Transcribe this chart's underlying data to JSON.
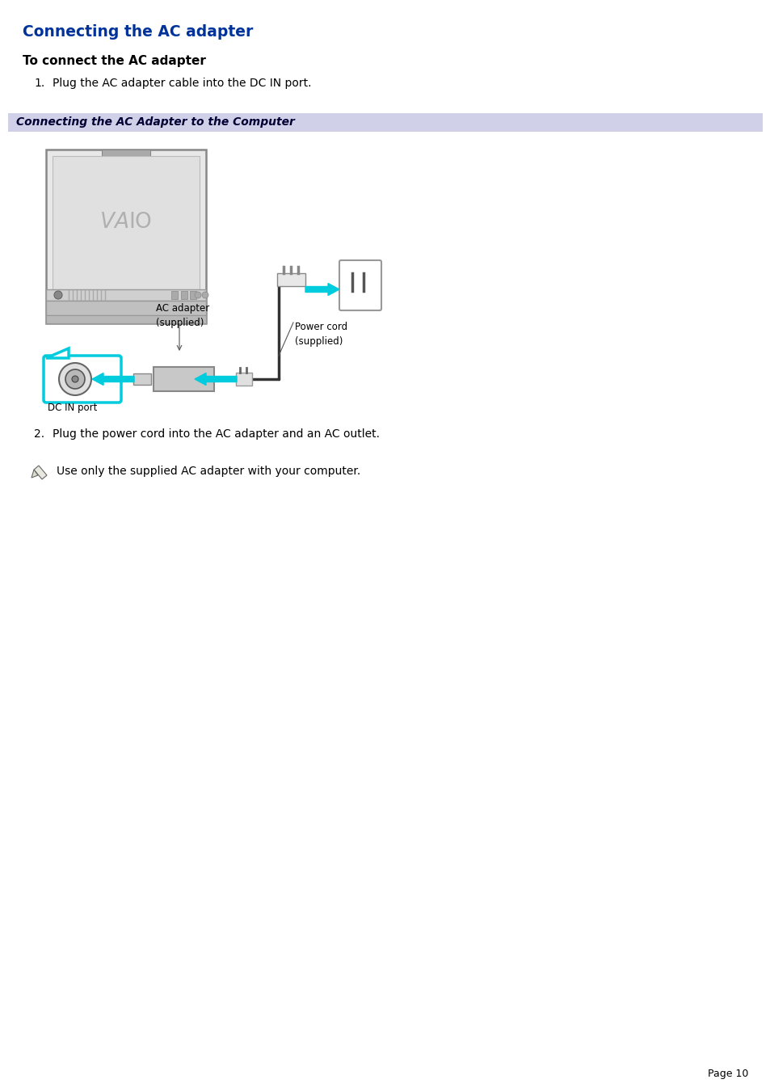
{
  "title": "Connecting the AC adapter",
  "title_color": "#003399",
  "subtitle": "To connect the AC adapter",
  "step1": "Plug the AC adapter cable into the DC IN port.",
  "step2": "Plug the power cord into the AC adapter and an AC outlet.",
  "note": "Use only the supplied AC adapter with your computer.",
  "caption_bar_text": "Connecting the AC Adapter to the Computer",
  "caption_bar_bg": "#d0d0e8",
  "page_num": "Page 10",
  "bg_color": "#ffffff",
  "text_color": "#000000",
  "cyan": "#00ccdd",
  "fig_width": 9.54,
  "fig_height": 13.51,
  "dpi": 100
}
